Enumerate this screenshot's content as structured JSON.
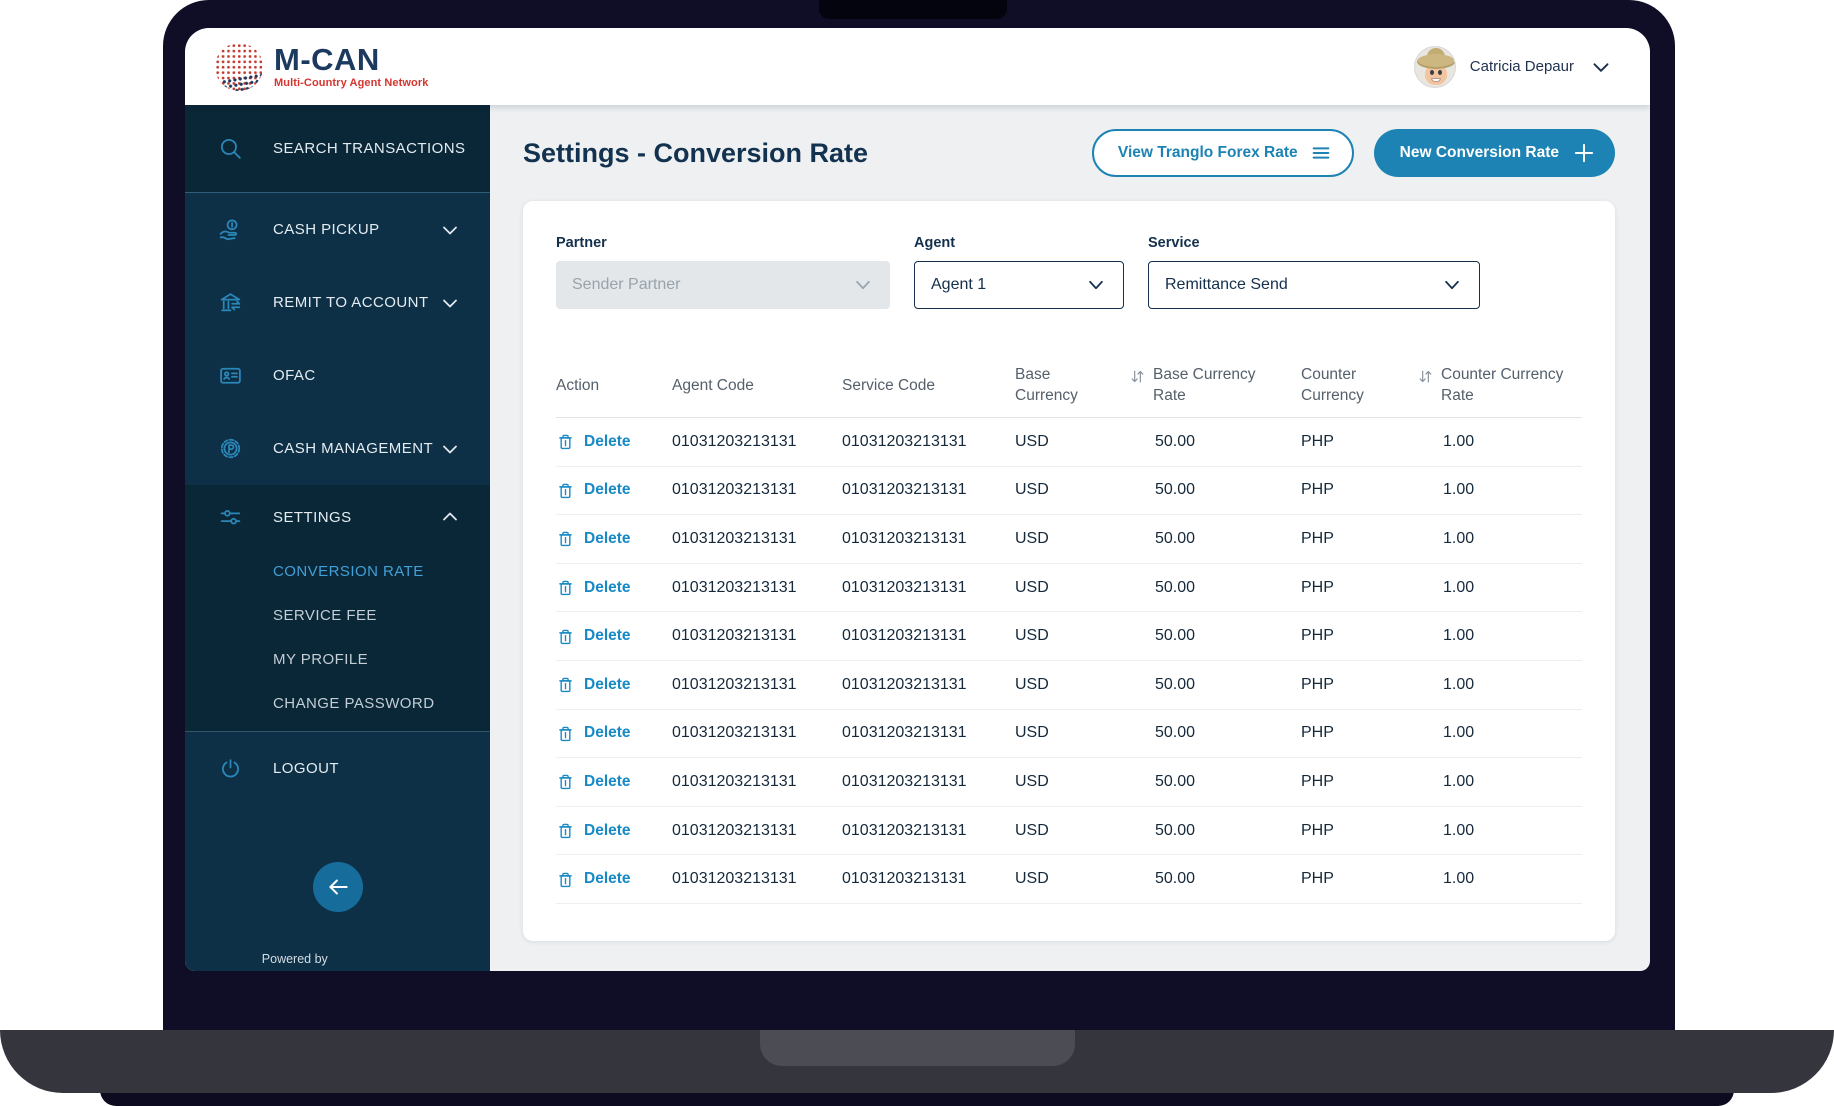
{
  "brand": {
    "name": "M-CAN",
    "tagline": "Multi-Country Agent Network"
  },
  "user": {
    "name": "Catricia Depaur"
  },
  "sidebar": {
    "items": [
      {
        "label": "SEARCH TRANSACTIONS",
        "icon": "search-icon",
        "chevron": null
      },
      {
        "label": "CASH PICKUP",
        "icon": "cash-pickup-icon",
        "chevron": "down"
      },
      {
        "label": "REMIT TO ACCOUNT",
        "icon": "bank-icon",
        "chevron": "down"
      },
      {
        "label": "OFAC",
        "icon": "id-card-icon",
        "chevron": null
      },
      {
        "label": "CASH MANAGEMENT",
        "icon": "cash-management-icon",
        "chevron": "down"
      },
      {
        "label": "SETTINGS",
        "icon": "sliders-icon",
        "chevron": "up"
      }
    ],
    "settings_submenu": [
      {
        "label": "CONVERSION RATE",
        "active": true
      },
      {
        "label": "SERVICE FEE",
        "active": false
      },
      {
        "label": "MY PROFILE",
        "active": false
      },
      {
        "label": "CHANGE PASSWORD",
        "active": false
      }
    ],
    "logout_label": "LOGOUT",
    "powered_by": "Powered by"
  },
  "header": {
    "title": "Settings - Conversion Rate",
    "view_forex_button": "View Tranglo Forex Rate",
    "new_rate_button": "New Conversion Rate"
  },
  "filters": {
    "partner": {
      "label": "Partner",
      "value": "Sender Partner"
    },
    "agent": {
      "label": "Agent",
      "value": "Agent 1"
    },
    "service": {
      "label": "Service",
      "value": "Remittance Send"
    }
  },
  "table": {
    "columns": [
      "Action",
      "Agent Code",
      "Service Code",
      "Base Currency",
      "Base Currency Rate",
      "Counter Currency",
      "Counter Currency Rate"
    ],
    "sortable_columns": [
      4,
      6
    ],
    "delete_label": "Delete",
    "rows": [
      {
        "agent_code": "01031203213131",
        "service_code": "01031203213131",
        "base_currency": "USD",
        "base_currency_rate": "50.00",
        "counter_currency": "PHP",
        "counter_currency_rate": "1.00"
      },
      {
        "agent_code": "01031203213131",
        "service_code": "01031203213131",
        "base_currency": "USD",
        "base_currency_rate": "50.00",
        "counter_currency": "PHP",
        "counter_currency_rate": "1.00"
      },
      {
        "agent_code": "01031203213131",
        "service_code": "01031203213131",
        "base_currency": "USD",
        "base_currency_rate": "50.00",
        "counter_currency": "PHP",
        "counter_currency_rate": "1.00"
      },
      {
        "agent_code": "01031203213131",
        "service_code": "01031203213131",
        "base_currency": "USD",
        "base_currency_rate": "50.00",
        "counter_currency": "PHP",
        "counter_currency_rate": "1.00"
      },
      {
        "agent_code": "01031203213131",
        "service_code": "01031203213131",
        "base_currency": "USD",
        "base_currency_rate": "50.00",
        "counter_currency": "PHP",
        "counter_currency_rate": "1.00"
      },
      {
        "agent_code": "01031203213131",
        "service_code": "01031203213131",
        "base_currency": "USD",
        "base_currency_rate": "50.00",
        "counter_currency": "PHP",
        "counter_currency_rate": "1.00"
      },
      {
        "agent_code": "01031203213131",
        "service_code": "01031203213131",
        "base_currency": "USD",
        "base_currency_rate": "50.00",
        "counter_currency": "PHP",
        "counter_currency_rate": "1.00"
      },
      {
        "agent_code": "01031203213131",
        "service_code": "01031203213131",
        "base_currency": "USD",
        "base_currency_rate": "50.00",
        "counter_currency": "PHP",
        "counter_currency_rate": "1.00"
      },
      {
        "agent_code": "01031203213131",
        "service_code": "01031203213131",
        "base_currency": "USD",
        "base_currency_rate": "50.00",
        "counter_currency": "PHP",
        "counter_currency_rate": "1.00"
      },
      {
        "agent_code": "01031203213131",
        "service_code": "01031203213131",
        "base_currency": "USD",
        "base_currency_rate": "50.00",
        "counter_currency": "PHP",
        "counter_currency_rate": "1.00"
      }
    ]
  },
  "colors": {
    "accent_teal": "#1d83b4",
    "sidebar_bg": "#0d3047",
    "sidebar_dark_block": "#0a2737",
    "navy_text": "#12324f",
    "active_link": "#41a0d8",
    "delete_blue": "#1789c5",
    "main_bg": "#eef0f2",
    "brand_navy": "#1b3a5e",
    "brand_red": "#d6352f"
  }
}
